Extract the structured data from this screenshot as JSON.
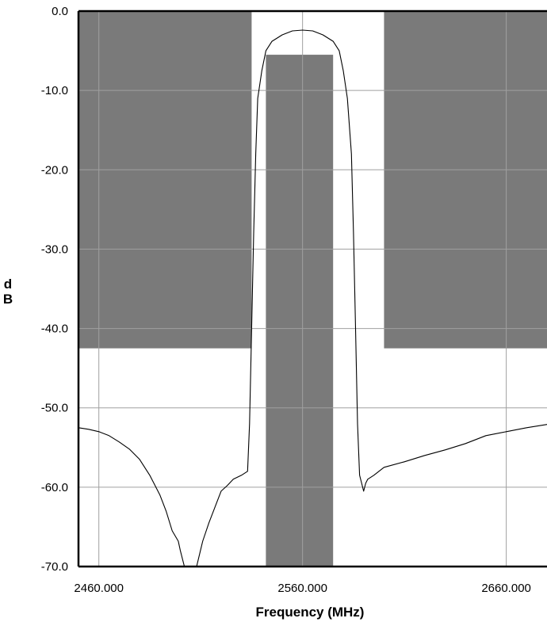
{
  "chart_data": {
    "type": "line",
    "xlabel": "Frequency (MHz)",
    "ylabel": [
      "d",
      "B"
    ],
    "xlim": [
      2450,
      2680
    ],
    "ylim": [
      -70,
      0
    ],
    "x_ticks": [
      {
        "value": 2460,
        "label": "2460.000"
      },
      {
        "value": 2560,
        "label": "2560.000"
      },
      {
        "value": 2660,
        "label": "2660.000"
      }
    ],
    "y_ticks": [
      {
        "value": 0,
        "label": "0.0"
      },
      {
        "value": -10,
        "label": "-10.0"
      },
      {
        "value": -20,
        "label": "-20.0"
      },
      {
        "value": -30,
        "label": "-30.0"
      },
      {
        "value": -40,
        "label": "-40.0"
      },
      {
        "value": -50,
        "label": "-50.0"
      },
      {
        "value": -60,
        "label": "-60.0"
      },
      {
        "value": -70,
        "label": "-70.0"
      }
    ],
    "grid": true,
    "mask_regions": [
      {
        "x0": 2450,
        "x1": 2535,
        "y_top": 0,
        "y_bottom": -42.5
      },
      {
        "x0": 2542,
        "x1": 2575,
        "y_top": -5.5,
        "y_bottom": -70
      },
      {
        "x0": 2600,
        "x1": 2685,
        "y_top": 0,
        "y_bottom": -42.5
      }
    ],
    "mask_color": "#7a7a7a",
    "line_color": "#000000",
    "series": [
      {
        "x": [
          2450,
          2455,
          2460,
          2465,
          2470,
          2475,
          2480,
          2485,
          2490,
          2493,
          2496,
          2499,
          2500,
          2502,
          2504,
          2506,
          2508,
          2511,
          2514,
          2517,
          2520,
          2523,
          2526,
          2530,
          2533,
          2534,
          2535,
          2536,
          2537,
          2538,
          2540,
          2542,
          2545,
          2550,
          2555,
          2560,
          2565,
          2570,
          2575,
          2578,
          2580,
          2582,
          2584,
          2585,
          2586,
          2587,
          2588,
          2589,
          2590,
          2591,
          2592,
          2595,
          2600,
          2610,
          2620,
          2630,
          2640,
          2650,
          2660,
          2670,
          2680,
          2685
        ],
        "y": [
          -52.5,
          -52.7,
          -53.0,
          -53.5,
          -54.3,
          -55.2,
          -56.5,
          -58.5,
          -61.0,
          -63.0,
          -65.5,
          -66.8,
          -68.0,
          -70.0,
          -70.5,
          -70.5,
          -70.0,
          -66.8,
          -64.5,
          -62.5,
          -60.5,
          -59.8,
          -59.0,
          -58.5,
          -58.0,
          -52.0,
          -40.0,
          -28.0,
          -18.0,
          -11.0,
          -7.5,
          -5.0,
          -3.8,
          -3.0,
          -2.5,
          -2.4,
          -2.5,
          -3.0,
          -3.8,
          -5.0,
          -7.5,
          -11.0,
          -18.0,
          -28.0,
          -40.0,
          -52.0,
          -58.5,
          -59.5,
          -60.5,
          -59.5,
          -59.0,
          -58.5,
          -57.5,
          -56.8,
          -56.0,
          -55.3,
          -54.5,
          -53.5,
          -53.0,
          -52.5,
          -52.1,
          -52.0
        ]
      }
    ]
  }
}
